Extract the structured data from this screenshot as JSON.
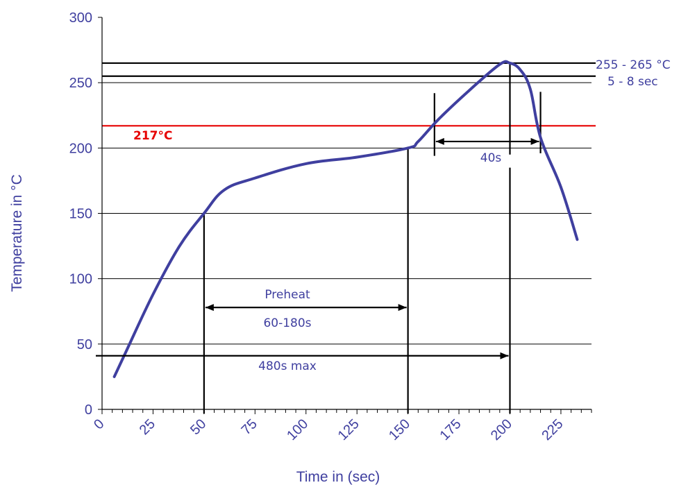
{
  "chart_data": {
    "type": "line",
    "title": "",
    "xlabel": "Time in (sec)",
    "ylabel": "Temperature in °C",
    "xlim": [
      0,
      240
    ],
    "ylim": [
      0,
      300
    ],
    "x_ticks": [
      "0",
      "25",
      "50",
      "75",
      "100",
      "125",
      "150",
      "175",
      "200",
      "225"
    ],
    "y_ticks": [
      "0",
      "50",
      "100",
      "150",
      "200",
      "250",
      "300"
    ],
    "grid_y": true,
    "series": [
      {
        "name": "",
        "color": "#3f3f9f",
        "x": [
          6,
          12,
          25,
          38,
          50,
          60,
          75,
          100,
          125,
          150,
          155,
          165,
          180,
          195,
          200,
          205,
          210,
          215,
          225,
          233
        ],
        "y": [
          25,
          45,
          88,
          125,
          150,
          168,
          177,
          188,
          193,
          200,
          205,
          222,
          244,
          264,
          265,
          260,
          245,
          208,
          170,
          130
        ]
      }
    ],
    "reference_lines": [
      {
        "y": 217,
        "color": "#e60000",
        "label": "217°C"
      },
      {
        "y": 265,
        "color": "#000000"
      },
      {
        "y": 255,
        "color": "#000000"
      }
    ],
    "annotations": {
      "peak_range": "255 - 265 °C",
      "peak_time": "5 - 8 sec",
      "tal_label": "40s",
      "preheat_label": "Preheat",
      "preheat_range": "60-180s",
      "total_label": "480s max"
    },
    "markers": {
      "preheat_start": 50,
      "preheat_end": 150,
      "peak_time": 200,
      "tal_start": 163,
      "tal_end": 215
    }
  }
}
